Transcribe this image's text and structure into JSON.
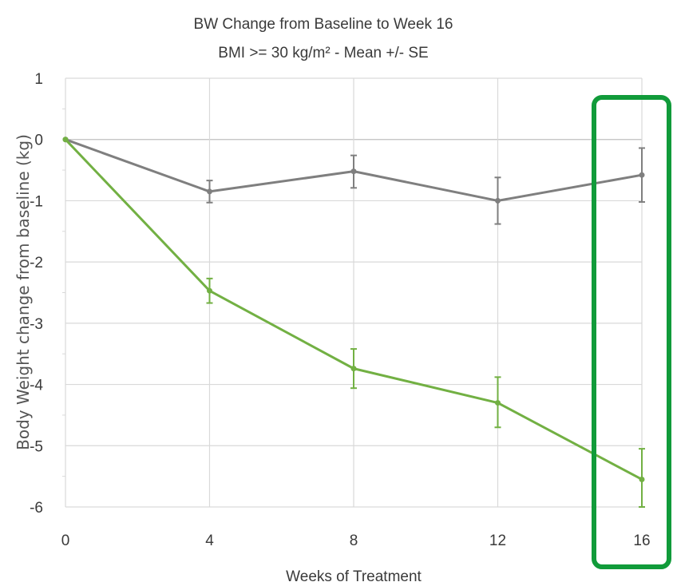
{
  "chart_data": {
    "type": "line",
    "title": "BW Change from Baseline to Week 16",
    "subtitle": "BMI >= 30 kg/m² - Mean +/- SE",
    "xlabel": "Weeks of Treatment",
    "ylabel": "Body Weight change from baseline (kg)",
    "x": [
      0,
      4,
      8,
      12,
      16
    ],
    "x_ticks": [
      "0",
      "4",
      "8",
      "12",
      "16"
    ],
    "y_ticks": [
      "1",
      "0",
      "-1",
      "-2",
      "-3",
      "-4",
      "-5",
      "-6"
    ],
    "xlim": [
      0,
      16
    ],
    "ylim": [
      -6,
      1
    ],
    "grid": true,
    "series": [
      {
        "color": "#7f7f7f",
        "values": [
          0,
          -0.85,
          -0.52,
          -1.0,
          -0.58
        ],
        "error_low": [
          0,
          -1.03,
          -0.79,
          -1.38,
          -1.02
        ],
        "error_high": [
          0,
          -0.67,
          -0.26,
          -0.62,
          -0.14
        ]
      },
      {
        "color": "#72b043",
        "values": [
          0,
          -2.47,
          -3.74,
          -4.3,
          -5.55
        ],
        "error_low": [
          0,
          -2.67,
          -4.06,
          -4.7,
          -6.0
        ],
        "error_high": [
          0,
          -2.27,
          -3.42,
          -3.88,
          -5.05
        ]
      }
    ],
    "highlight": {
      "x": 16,
      "color": "#119b3a"
    }
  }
}
